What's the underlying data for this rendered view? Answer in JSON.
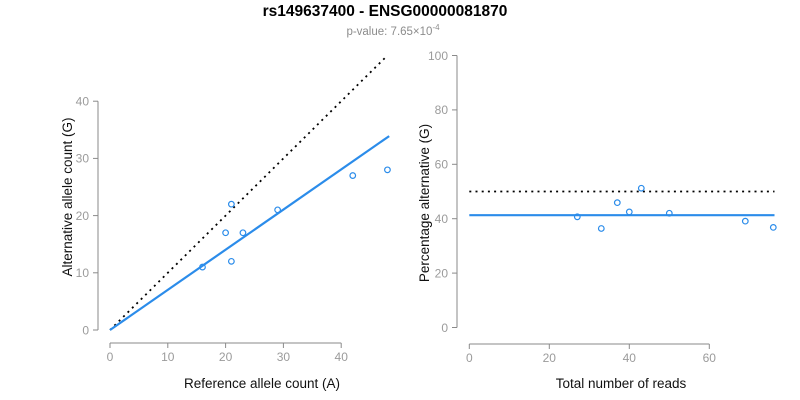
{
  "page": {
    "title": "rs149637400 - ENSG00000081870",
    "subtitle_base": "p-value: 7.65×10",
    "subtitle_exponent": "-4"
  },
  "colors": {
    "accent_blue": "#2b8cea",
    "dotted_line": "#000000",
    "axis": "#8a8a8a",
    "tick_label": "#9b9b9b",
    "axis_title": "#111111",
    "title": "#000000",
    "subtitle": "#8c8c8c"
  },
  "chart_data": [
    {
      "name": "allele-count-scatter",
      "type": "scatter",
      "xlabel": "Reference allele count (A)",
      "ylabel": "Alternative allele count (G)",
      "x_ticks": [
        0,
        10,
        20,
        30,
        40
      ],
      "y_ticks": [
        0,
        10,
        20,
        30,
        40
      ],
      "xlim": [
        0,
        48.5
      ],
      "ylim": [
        0,
        48.5
      ],
      "grid": false,
      "legend": null,
      "points": {
        "x": [
          16,
          20,
          21,
          21,
          23,
          29,
          42,
          48
        ],
        "y": [
          11,
          17,
          12,
          22,
          17,
          21,
          27,
          28
        ]
      },
      "lines": [
        {
          "name": "expected-identity-line",
          "style": "dotted",
          "color_key": "dotted_line",
          "x1": 0,
          "y1": 0,
          "x2": 47.9,
          "y2": 47.9
        },
        {
          "name": "fitted-line",
          "style": "solid",
          "color_key": "accent_blue",
          "x1": 0,
          "y1": 0,
          "x2": 48.3,
          "y2": 33.9
        }
      ]
    },
    {
      "name": "percentage-scatter",
      "type": "scatter",
      "xlabel": "Total number of reads",
      "ylabel": "Percentage alternative (G)",
      "x_ticks": [
        0,
        20,
        40,
        60
      ],
      "y_ticks": [
        0,
        20,
        40,
        60,
        80,
        100
      ],
      "xlim": [
        0,
        79
      ],
      "ylim": [
        0,
        104
      ],
      "grid": false,
      "legend": null,
      "points": {
        "x": [
          27,
          33,
          37,
          40,
          43,
          50,
          69,
          76
        ],
        "y": [
          40.7,
          36.4,
          45.9,
          42.5,
          51.2,
          42.0,
          39.1,
          36.8
        ]
      },
      "lines": [
        {
          "name": "expected-50pct-line",
          "style": "dotted",
          "color_key": "dotted_line",
          "x1": 0,
          "y1": 50,
          "x2": 76.3,
          "y2": 50
        },
        {
          "name": "mean-percentage-line",
          "style": "solid",
          "color_key": "accent_blue",
          "x1": 0,
          "y1": 41.3,
          "x2": 76.3,
          "y2": 41.3
        }
      ]
    }
  ]
}
